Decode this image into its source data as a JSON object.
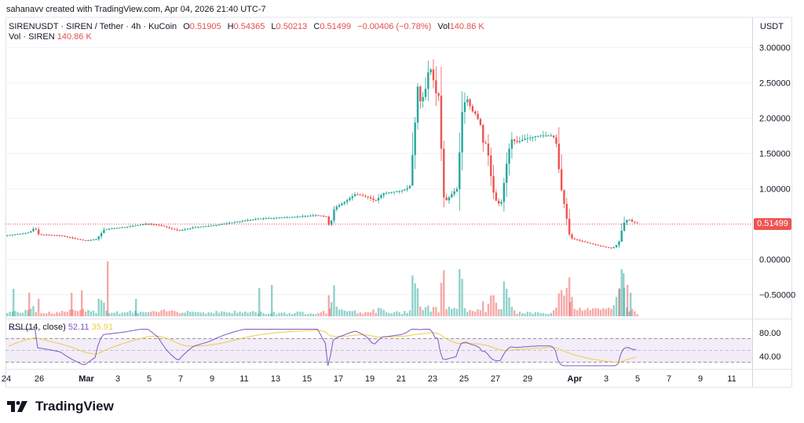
{
  "credit": "sahanavv created with TradingView.com, Apr 04, 2026 21:40 UTC-7",
  "legend": {
    "symbol": "SIRENUSDT · SIREN / Tether · 4h · KuCoin",
    "open_label": "O",
    "open": "0.51905",
    "high_label": "H",
    "high": "0.54365",
    "low_label": "L",
    "low": "0.50213",
    "close_label": "C",
    "close": "0.51499",
    "change": "−0.00406 (−0.78%)",
    "vol_label": "Vol",
    "vol": "140.86 K"
  },
  "volume_legend": {
    "label": "Vol · SIREN",
    "value": "140.86 K"
  },
  "rsi_legend": {
    "label": "RSI (14, close)",
    "rsi": "52.11",
    "ma": "35.91"
  },
  "price_axis": {
    "currency": "USDT",
    "ticks": [
      "3.00000",
      "2.50000",
      "2.00000",
      "1.50000",
      "1.00000",
      "0.00000",
      "−0.50000"
    ],
    "last_price": "0.51499"
  },
  "rsi_axis": {
    "ticks": [
      "80.00",
      "40.00"
    ]
  },
  "time_axis": {
    "ticks": [
      "24",
      "26",
      "Mar",
      "3",
      "5",
      "7",
      "9",
      "11",
      "13",
      "15",
      "17",
      "19",
      "21",
      "23",
      "25",
      "27",
      "29",
      "Apr",
      "3",
      "5",
      "7",
      "9",
      "11"
    ]
  },
  "brand": "TradingView",
  "colors": {
    "up": "#26a69a",
    "down": "#ef5350",
    "rsi_line": "#7e57c2",
    "rsi_ma": "#f2c94c",
    "rsi_band": "#ede7f6"
  },
  "chart_data": {
    "type": "candlestick",
    "title": "SIRENUSDT · SIREN / Tether · 4h · KuCoin",
    "ylabel": "USDT",
    "ylim": [
      -0.5,
      3.1
    ],
    "x_ticks": [
      "24",
      "26",
      "Mar",
      "3",
      "5",
      "7",
      "9",
      "11",
      "13",
      "15",
      "17",
      "19",
      "21",
      "23",
      "25",
      "27",
      "29",
      "Apr",
      "3",
      "5"
    ],
    "approx_close_by_date": [
      {
        "date": "Feb 24",
        "close": 0.33
      },
      {
        "date": "Feb 26",
        "close": 0.4
      },
      {
        "date": "Feb 27",
        "close": 0.38
      },
      {
        "date": "Mar 1",
        "close": 0.27
      },
      {
        "date": "Mar 3",
        "close": 0.45
      },
      {
        "date": "Mar 5",
        "close": 0.5
      },
      {
        "date": "Mar 7",
        "close": 0.4
      },
      {
        "date": "Mar 9",
        "close": 0.47
      },
      {
        "date": "Mar 11",
        "close": 0.52
      },
      {
        "date": "Mar 13",
        "close": 0.58
      },
      {
        "date": "Mar 15",
        "close": 0.62
      },
      {
        "date": "Mar 16",
        "close": 0.45
      },
      {
        "date": "Mar 17",
        "close": 0.8
      },
      {
        "date": "Mar 19",
        "close": 0.85
      },
      {
        "date": "Mar 21",
        "close": 1.0
      },
      {
        "date": "Mar 22",
        "close": 2.45
      },
      {
        "date": "Mar 22 PM",
        "close": 2.75
      },
      {
        "date": "Mar 23",
        "close": 2.3
      },
      {
        "date": "Mar 24",
        "close": 0.85
      },
      {
        "date": "Mar 25",
        "close": 2.25
      },
      {
        "date": "Mar 26",
        "close": 1.7
      },
      {
        "date": "Mar 27",
        "close": 0.8
      },
      {
        "date": "Mar 28",
        "close": 1.7
      },
      {
        "date": "Mar 30",
        "close": 1.75
      },
      {
        "date": "Mar 31",
        "close": 1.05
      },
      {
        "date": "Apr 1",
        "close": 0.28
      },
      {
        "date": "Apr 2",
        "close": 0.2
      },
      {
        "date": "Apr 3",
        "close": 0.15
      },
      {
        "date": "Apr 4",
        "close": 0.51499
      }
    ],
    "last_candle": {
      "open": 0.51905,
      "high": 0.54365,
      "low": 0.50213,
      "close": 0.51499,
      "volume": "140.86K"
    },
    "rsi": {
      "period": 14,
      "value": 52.11,
      "ma": 35.91,
      "bands": [
        70,
        50,
        30
      ],
      "axis_ticks": [
        80,
        40
      ]
    },
    "grid": true
  }
}
